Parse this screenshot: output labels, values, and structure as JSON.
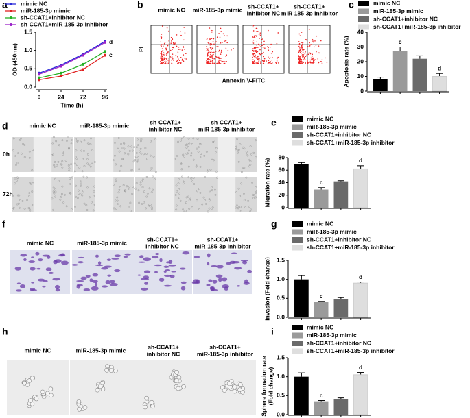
{
  "chart_data": [
    {
      "type": "line",
      "panel_label": "a",
      "x_label": "Time (h)",
      "y_label": "OD (450nm)",
      "categories": [
        "0",
        "24",
        "72",
        "96"
      ],
      "ylim": [
        0,
        1.5
      ],
      "yticks": [
        {
          "value": 0,
          "label": "0.0"
        },
        0.5,
        {
          "value": 1,
          "label": "1.0"
        },
        1.5
      ],
      "series": [
        {
          "name": "mimic NC",
          "color": "#2a2ad8",
          "values": [
            0.38,
            0.6,
            0.9,
            1.25
          ]
        },
        {
          "name": "miR-185-3p mimic",
          "color": "#e02020",
          "values": [
            0.2,
            0.3,
            0.48,
            0.87
          ],
          "end_label": "c"
        },
        {
          "name": "sh-CCAT1+inhibitor NC",
          "color": "#22b022",
          "values": [
            0.25,
            0.38,
            0.62,
            0.97
          ]
        },
        {
          "name": "sh-CCAT1+miR-185-3p inhibitor",
          "color": "#9a22c8",
          "values": [
            0.35,
            0.57,
            0.87,
            1.22
          ],
          "end_label": "d"
        }
      ]
    },
    {
      "type": "bar",
      "panel_label": "c",
      "y_label": "Apoptosis rate (%)",
      "categories": [
        "mimic NC",
        "miR-185-3p mimic",
        "sh-CCAT1+inhibitor NC",
        "sh-CCAT1+miR-185-3p inhibitor"
      ],
      "colors": [
        "#000000",
        "#9a9a9a",
        "#6a6a6a",
        "#dedede"
      ],
      "values": [
        8,
        27,
        22,
        10
      ],
      "errors": [
        1.5,
        3,
        2,
        2
      ],
      "markers": [
        null,
        "c",
        null,
        "d"
      ],
      "ylim": [
        0,
        40
      ],
      "yticks": [
        0,
        10,
        20,
        30,
        40
      ]
    },
    {
      "type": "bar",
      "panel_label": "e",
      "y_label": "Migration rate (%)",
      "categories": [
        "mimic NC",
        "miR-185-3p mimic",
        "sh-CCAT1+inhibitor NC",
        "sh-CCAT1+miR-185-3p inhibitor"
      ],
      "colors": [
        "#000000",
        "#9a9a9a",
        "#6a6a6a",
        "#dedede"
      ],
      "values": [
        70,
        29,
        42,
        62
      ],
      "errors": [
        2,
        3,
        1,
        5
      ],
      "markers": [
        null,
        "c",
        null,
        "d"
      ],
      "ylim": [
        0,
        80
      ],
      "yticks": [
        0,
        20,
        40,
        60,
        80
      ]
    },
    {
      "type": "bar",
      "panel_label": "g",
      "y_label": "Invasion (Fold change)",
      "categories": [
        "mimic NC",
        "miR-185-3p mimic",
        "sh-CCAT1+inhibitor NC",
        "sh-CCAT1+miR-185-3p inhibitor"
      ],
      "colors": [
        "#000000",
        "#9a9a9a",
        "#6a6a6a",
        "#dedede"
      ],
      "values": [
        1.0,
        0.4,
        0.47,
        0.9
      ],
      "errors": [
        0.1,
        0.02,
        0.05,
        0.03
      ],
      "markers": [
        null,
        "c",
        null,
        "d"
      ],
      "ylim": [
        0,
        1.5
      ],
      "yticks": [
        {
          "value": 0,
          "label": "0.0"
        },
        0.5,
        {
          "value": 1,
          "label": "1.0"
        },
        1.5
      ]
    },
    {
      "type": "bar",
      "panel_label": "i",
      "y_label": [
        "Sphere formation rate",
        "(Fold change)"
      ],
      "categories": [
        "mimic NC",
        "miR-185-3p mimic",
        "sh-CCAT1+inhibitor NC",
        "sh-CCAT1+miR-185-3p inhibitor"
      ],
      "colors": [
        "#000000",
        "#9a9a9a",
        "#6a6a6a",
        "#dedede"
      ],
      "values": [
        1.0,
        0.35,
        0.4,
        1.05
      ],
      "errors": [
        0.1,
        0.02,
        0.04,
        0.06
      ],
      "markers": [
        null,
        "c",
        null,
        "d"
      ],
      "ylim": [
        0,
        1.5
      ],
      "yticks": [
        {
          "value": 0,
          "label": "0.0"
        },
        0.5,
        {
          "value": 1,
          "label": "1.0"
        },
        1.5
      ]
    }
  ],
  "image_panels": {
    "b": {
      "panel_label": "b",
      "kind": "flow",
      "x_label": "Annexin V-FITC",
      "y_label": "PI",
      "columns": [
        [
          "mimic NC"
        ],
        [
          "miR-185-3p mimic"
        ],
        [
          "sh-CCAT1+",
          "inhibitor NC"
        ],
        [
          "sh-CCAT1+",
          "miR-185-3p inhibitor"
        ]
      ]
    },
    "d": {
      "panel_label": "d",
      "kind": "wound",
      "rows": [
        "0h",
        "72h"
      ],
      "columns": [
        [
          "mimic NC"
        ],
        [
          "miR-185-3p mimic"
        ],
        [
          "sh-CCAT1+",
          "inhibitor NC"
        ],
        [
          "sh-CCAT1+",
          "miR-185-3p inhibitor"
        ]
      ]
    },
    "f": {
      "panel_label": "f",
      "kind": "invasion",
      "columns": [
        [
          "mimic NC"
        ],
        [
          "miR-185-3p mimic"
        ],
        [
          "sh-CCAT1+",
          "inhibitor NC"
        ],
        [
          "sh-CCAT1+",
          "miR-185-3p inhibitor"
        ]
      ]
    },
    "h": {
      "panel_label": "h",
      "kind": "sphere",
      "columns": [
        [
          "mimic NC"
        ],
        [
          "miR-185-3p mimic"
        ],
        [
          "sh-CCAT1+",
          "inhibitor NC"
        ],
        [
          "sh-CCAT1+",
          "miR-185-3p inhibitor"
        ]
      ]
    }
  }
}
